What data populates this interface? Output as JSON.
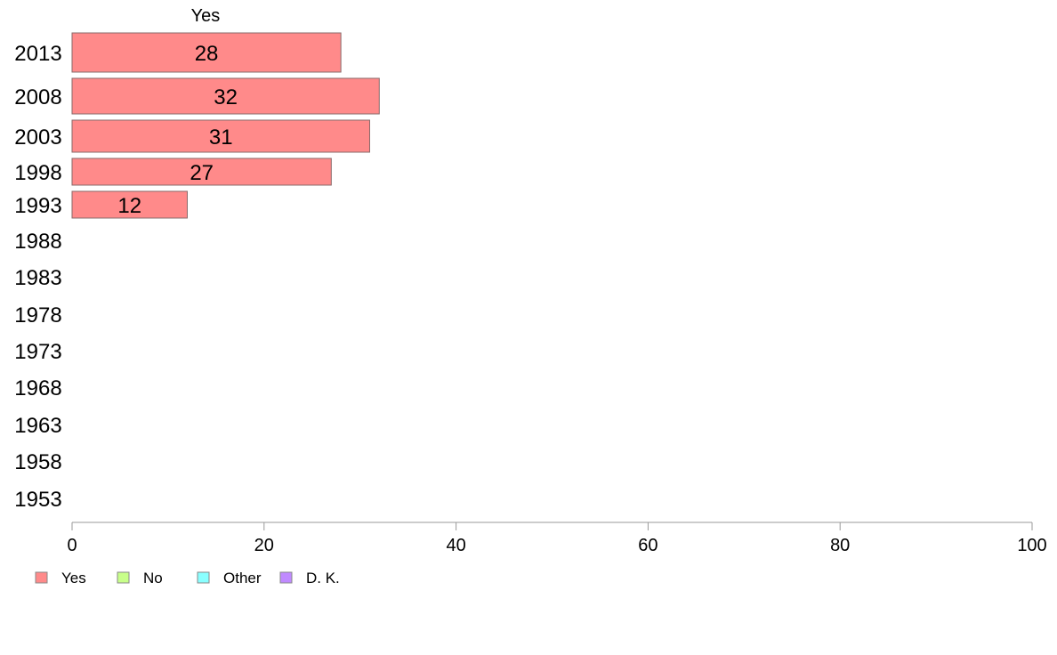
{
  "chart_data": {
    "type": "bar",
    "orientation": "horizontal",
    "stacked": true,
    "categories": [
      "2013",
      "2008",
      "2003",
      "1998",
      "1993",
      "1988",
      "1983",
      "1978",
      "1973",
      "1968",
      "1963",
      "1958",
      "1953"
    ],
    "series": [
      {
        "name": "Yes",
        "color": "#ff8a8a",
        "values": [
          28,
          32,
          31,
          27,
          12,
          null,
          null,
          null,
          null,
          null,
          null,
          null,
          null
        ]
      },
      {
        "name": "No",
        "color": "#c8ff8a",
        "values": [
          null,
          null,
          null,
          null,
          null,
          null,
          null,
          null,
          null,
          null,
          null,
          null,
          null
        ]
      },
      {
        "name": "Other",
        "color": "#8affff",
        "values": [
          null,
          null,
          null,
          null,
          null,
          null,
          null,
          null,
          null,
          null,
          null,
          null,
          null
        ]
      },
      {
        "name": "D. K.",
        "color": "#c08aff",
        "values": [
          null,
          null,
          null,
          null,
          null,
          null,
          null,
          null,
          null,
          null,
          null,
          null,
          null
        ]
      }
    ],
    "column_header": "Yes",
    "xlim": [
      0,
      100
    ],
    "xticks": [
      0,
      20,
      40,
      60,
      80,
      100
    ],
    "grid": false,
    "legend_position": "bottom-left"
  }
}
